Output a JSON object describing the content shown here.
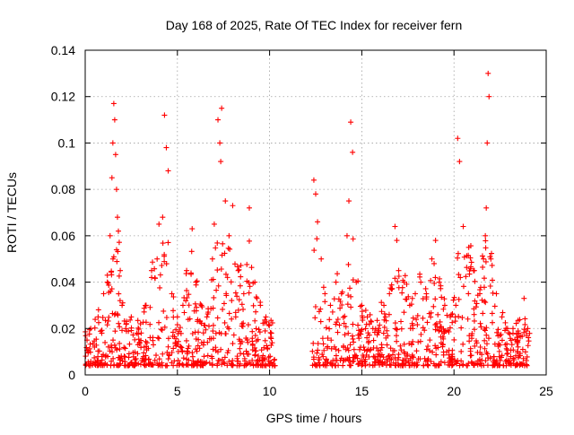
{
  "chart_data": {
    "type": "scatter",
    "title": "Day 168 of 2025, Rate Of TEC Index for receiver fern",
    "xlabel": "GPS time / hours",
    "ylabel": "ROTI / TECUs",
    "xlim": [
      0,
      25
    ],
    "ylim": [
      0,
      0.14
    ],
    "xticks": [
      0,
      5,
      10,
      15,
      20,
      25
    ],
    "yticks": [
      0,
      0.02,
      0.04,
      0.06,
      0.08,
      0.1,
      0.12,
      0.14
    ],
    "xtick_labels": [
      "0",
      "5",
      "10",
      "15",
      "20",
      "25"
    ],
    "ytick_labels": [
      "0",
      "0.02",
      "0.04",
      "0.06",
      "0.08",
      "0.1",
      "0.12",
      "0.14"
    ],
    "grid": true,
    "marker": "+",
    "color": "#ff0000",
    "data_gap_hours": [
      10.3,
      12.3
    ],
    "series": [
      {
        "name": "ROTI",
        "x": [
          0.1,
          0.3,
          0.5,
          0.7,
          0.9,
          1.0,
          1.2,
          1.35,
          1.45,
          1.5,
          1.55,
          1.6,
          1.65,
          1.7,
          1.75,
          1.8,
          1.9,
          2.0,
          2.2,
          2.5,
          2.8,
          3.0,
          3.3,
          3.6,
          3.9,
          4.0,
          4.2,
          4.3,
          4.4,
          4.5,
          4.7,
          5.0,
          5.3,
          5.5,
          5.8,
          6.0,
          6.3,
          6.6,
          6.9,
          7.0,
          7.2,
          7.3,
          7.35,
          7.4,
          7.6,
          7.8,
          8.0,
          8.3,
          8.6,
          8.9,
          9.2,
          9.5,
          9.8,
          10.1,
          12.4,
          12.5,
          12.6,
          12.8,
          13.0,
          13.3,
          13.6,
          13.9,
          14.2,
          14.3,
          14.4,
          14.5,
          14.7,
          15.0,
          15.3,
          15.6,
          15.9,
          16.2,
          16.5,
          16.8,
          16.9,
          17.0,
          17.3,
          17.6,
          17.9,
          18.2,
          18.5,
          18.8,
          19.0,
          19.2,
          19.5,
          19.8,
          20.1,
          20.2,
          20.3,
          20.5,
          20.8,
          21.1,
          21.4,
          21.6,
          21.7,
          21.75,
          21.8,
          21.85,
          21.9,
          22.0,
          22.3,
          22.6,
          22.9,
          23.2,
          23.5,
          23.8,
          24.0
        ],
        "y": [
          0.015,
          0.02,
          0.012,
          0.025,
          0.018,
          0.035,
          0.04,
          0.06,
          0.085,
          0.1,
          0.117,
          0.11,
          0.095,
          0.08,
          0.068,
          0.062,
          0.045,
          0.03,
          0.02,
          0.025,
          0.018,
          0.022,
          0.03,
          0.045,
          0.05,
          0.065,
          0.068,
          0.112,
          0.098,
          0.088,
          0.035,
          0.025,
          0.03,
          0.045,
          0.063,
          0.04,
          0.03,
          0.025,
          0.05,
          0.065,
          0.11,
          0.1,
          0.092,
          0.115,
          0.075,
          0.06,
          0.073,
          0.045,
          0.035,
          0.072,
          0.04,
          0.03,
          0.025,
          0.018,
          0.084,
          0.078,
          0.066,
          0.05,
          0.035,
          0.03,
          0.04,
          0.035,
          0.06,
          0.075,
          0.109,
          0.096,
          0.04,
          0.03,
          0.025,
          0.02,
          0.02,
          0.03,
          0.035,
          0.064,
          0.058,
          0.045,
          0.04,
          0.03,
          0.035,
          0.04,
          0.035,
          0.05,
          0.058,
          0.04,
          0.03,
          0.025,
          0.03,
          0.102,
          0.092,
          0.064,
          0.055,
          0.045,
          0.035,
          0.05,
          0.06,
          0.072,
          0.1,
          0.13,
          0.12,
          0.05,
          0.035,
          0.025,
          0.02,
          0.02,
          0.018,
          0.033,
          0.02
        ]
      }
    ]
  }
}
